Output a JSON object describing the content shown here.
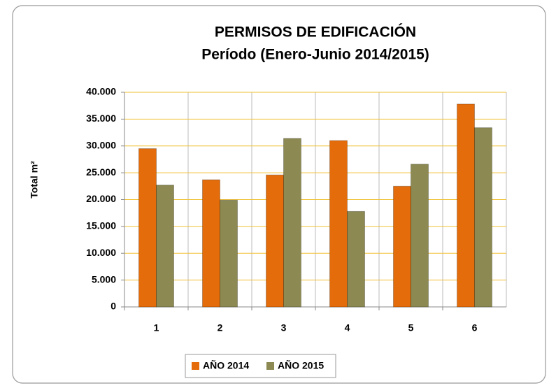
{
  "chart_data": {
    "type": "bar",
    "title": "PERMISOS DE EDIFICACIÓN",
    "subtitle": "Período (Enero-Junio 2014/2015)",
    "y_label": "Total m²",
    "categories": [
      "1",
      "2",
      "3",
      "4",
      "5",
      "6"
    ],
    "series": [
      {
        "name": "AÑO 2014",
        "color": "#e46c0a",
        "values": [
          29500,
          23700,
          24600,
          31000,
          22500,
          37800
        ]
      },
      {
        "name": "AÑO 2015",
        "color": "#8c8a52",
        "values": [
          22700,
          19900,
          31400,
          17800,
          26600,
          33400
        ]
      }
    ],
    "ylim": [
      0,
      40000
    ],
    "yticks": [
      0,
      {
        "value": 5000,
        "label": "5.000"
      },
      {
        "value": 10000,
        "label": "10.000"
      },
      {
        "value": 15000,
        "label": "15.000"
      },
      {
        "value": 20000,
        "label": "20.000"
      },
      {
        "value": 25000,
        "label": "25.000"
      },
      {
        "value": 30000,
        "label": "30.000"
      },
      {
        "value": 35000,
        "label": "35.000"
      },
      {
        "value": 40000,
        "label": "40.000"
      }
    ],
    "grid": true,
    "legend": "bottom"
  }
}
